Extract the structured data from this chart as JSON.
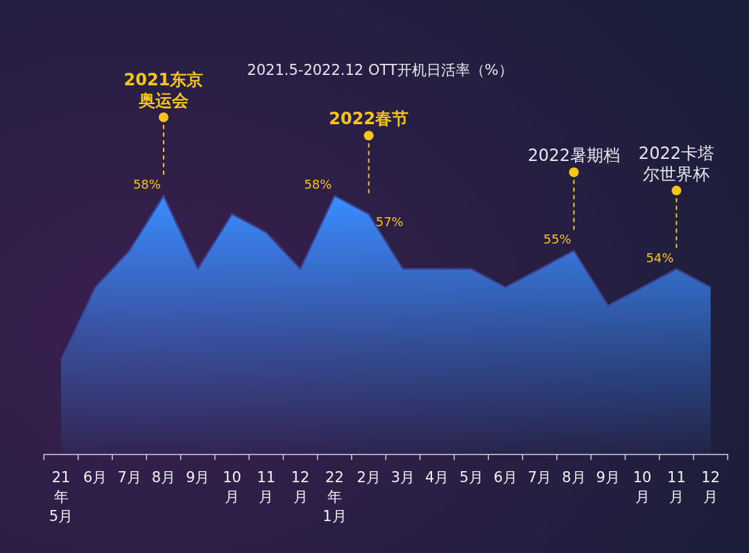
{
  "chart_data": {
    "type": "area",
    "title": "2021.5-2022.12 OTT开机日活率（%）",
    "categories": [
      "21\n年\n5月",
      "6月",
      "7月",
      "8月",
      "9月",
      "10\n月",
      "11\n月",
      "12\n月",
      "22\n年\n1月",
      "2月",
      "3月",
      "4月",
      "5月",
      "6月",
      "7月",
      "8月",
      "9月",
      "10\n月",
      "11\n月",
      "12\n月"
    ],
    "series": [
      {
        "color": "#3a8cff",
        "values": [
          49,
          53,
          55,
          58,
          54,
          57,
          56,
          54,
          58,
          57,
          54,
          54,
          54,
          53,
          54,
          55,
          52,
          53,
          54,
          53
        ],
        "value_labels": [
          null,
          null,
          null,
          "58%",
          null,
          null,
          null,
          null,
          "58%",
          "57%",
          null,
          null,
          null,
          null,
          null,
          "55%",
          null,
          null,
          "54%",
          null
        ]
      }
    ],
    "annotations": [
      "2021东京奥运会",
      "2022春节",
      "2022暑期档",
      "2022卡塔尔世界杯"
    ]
  }
}
